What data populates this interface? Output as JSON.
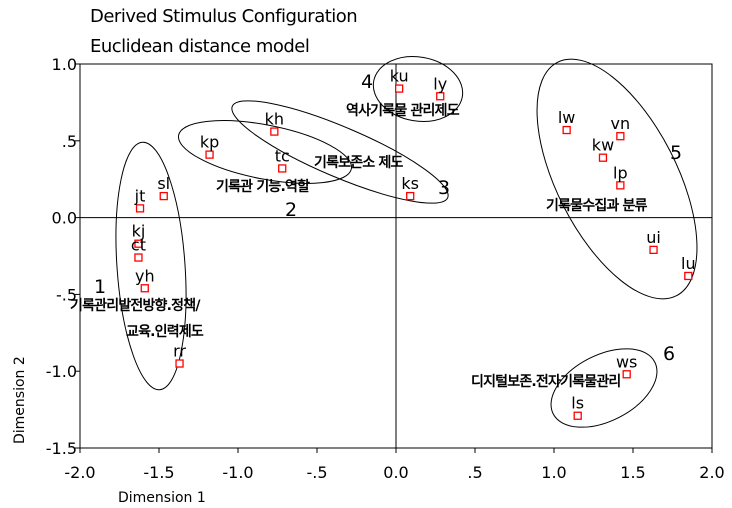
{
  "chart_data": {
    "type": "scatter",
    "title": "Derived Stimulus Configuration",
    "subtitle": "Euclidean distance model",
    "xlabel": "Dimension 1",
    "ylabel": "Dimension 2",
    "xlim": [
      -2.0,
      2.0
    ],
    "ylim": [
      -1.5,
      1.0
    ],
    "xticks": [
      "-2.0",
      "-1.5",
      "-1.0",
      "-.5",
      "0.0",
      ".5",
      "1.0",
      "1.5",
      "2.0"
    ],
    "yticks": [
      "1.0",
      ".5",
      "0.0",
      "-.5",
      "-1.0",
      "-1.5"
    ],
    "grid": false,
    "marker_color": "#ff0000",
    "points": [
      {
        "label": "ku",
        "x": 0.02,
        "y": 0.84
      },
      {
        "label": "ly",
        "x": 0.28,
        "y": 0.79
      },
      {
        "label": "kh",
        "x": -0.77,
        "y": 0.56
      },
      {
        "label": "kp",
        "x": -1.18,
        "y": 0.41
      },
      {
        "label": "tc",
        "x": -0.72,
        "y": 0.32
      },
      {
        "label": "ks",
        "x": 0.09,
        "y": 0.14
      },
      {
        "label": "lw",
        "x": 1.08,
        "y": 0.57
      },
      {
        "label": "vn",
        "x": 1.42,
        "y": 0.53
      },
      {
        "label": "kw",
        "x": 1.31,
        "y": 0.39
      },
      {
        "label": "lp",
        "x": 1.42,
        "y": 0.21
      },
      {
        "label": "ui",
        "x": 1.63,
        "y": -0.21
      },
      {
        "label": "lu",
        "x": 1.85,
        "y": -0.38
      },
      {
        "label": "jt",
        "x": -1.62,
        "y": 0.06
      },
      {
        "label": "sl",
        "x": -1.47,
        "y": 0.14
      },
      {
        "label": "kj",
        "x": -1.63,
        "y": -0.17
      },
      {
        "label": "ct",
        "x": -1.63,
        "y": -0.26
      },
      {
        "label": "yh",
        "x": -1.59,
        "y": -0.46
      },
      {
        "label": "rr",
        "x": -1.37,
        "y": -0.95
      },
      {
        "label": "ws",
        "x": 1.46,
        "y": -1.02
      },
      {
        "label": "ls",
        "x": 1.15,
        "y": -1.29
      }
    ],
    "groups": [
      {
        "number": "1",
        "name_lines": [
          "기록관리발전방향.정책/",
          "교육.인력제도"
        ]
      },
      {
        "number": "2",
        "name_lines": [
          "기록관 기능.역할"
        ]
      },
      {
        "number": "3",
        "name_lines": [
          "기록보존소 제도"
        ]
      },
      {
        "number": "4",
        "name_lines": [
          "역사기록물 관리제도"
        ]
      },
      {
        "number": "5",
        "name_lines": [
          "기록물수집과 분류"
        ]
      },
      {
        "number": "6",
        "name_lines": [
          "디지털보존.전자기록물관리"
        ]
      }
    ]
  }
}
